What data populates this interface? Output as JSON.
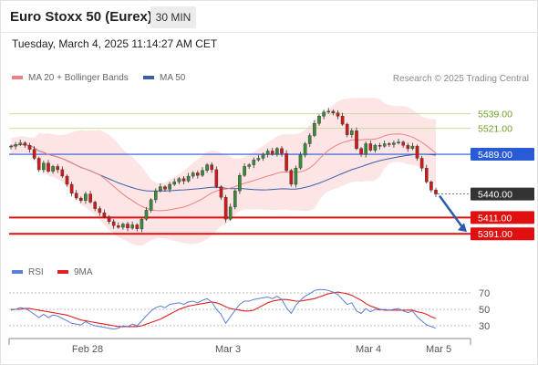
{
  "header": {
    "title": "Euro Stoxx 50 (Eurex)",
    "interval": "30 MIN",
    "timestamp": "Tuesday, March 4, 2025 11:14:27 AM CET"
  },
  "legend": {
    "ma20_bollinger": "MA 20 + Bollinger Bands",
    "ma50": "MA 50",
    "credit": "Research © 2025 Trading Central",
    "rsi": "RSI",
    "rsi_ma": "9MA"
  },
  "colors": {
    "ma20": "#f08080",
    "bollinger_fill": "#fde0e0",
    "ma50": "#3a5fa8",
    "resistance": "#c8dca0",
    "pivot": "#2a5bd7",
    "support": "#e01010",
    "last_price": "#333333",
    "candle_up": "#3b8a3b",
    "candle_down": "#d01919",
    "rsi": "#5b7fd6",
    "rsi_ma": "#e02020",
    "arrow": "#2a5bb0"
  },
  "chart_data": {
    "type": "candlestick",
    "ylim": [
      5362,
      5570
    ],
    "x_labels": [
      "Feb 28",
      "Mar 3",
      "Mar 4",
      "Mar 5"
    ],
    "levels": [
      {
        "value": 5539.0,
        "label": "5539.00",
        "kind": "resistance"
      },
      {
        "value": 5521.0,
        "label": "5521.00",
        "kind": "resistance"
      },
      {
        "value": 5489.0,
        "label": "5489.00",
        "kind": "pivot"
      },
      {
        "value": 5440.0,
        "label": "5440.00",
        "kind": "last"
      },
      {
        "value": 5411.0,
        "label": "5411.00",
        "kind": "support"
      },
      {
        "value": 5391.0,
        "label": "5391.00",
        "kind": "support"
      }
    ],
    "close": [
      5499,
      5501,
      5503,
      5500,
      5495,
      5484,
      5470,
      5478,
      5468,
      5474,
      5470,
      5462,
      5452,
      5441,
      5435,
      5432,
      5440,
      5430,
      5422,
      5417,
      5412,
      5406,
      5401,
      5399,
      5403,
      5398,
      5402,
      5397,
      5409,
      5420,
      5433,
      5444,
      5449,
      5446,
      5452,
      5455,
      5459,
      5456,
      5462,
      5466,
      5463,
      5469,
      5476,
      5470,
      5449,
      5436,
      5409,
      5424,
      5444,
      5463,
      5474,
      5476,
      5482,
      5484,
      5489,
      5493,
      5489,
      5496,
      5490,
      5469,
      5452,
      5472,
      5488,
      5502,
      5512,
      5527,
      5536,
      5541,
      5542,
      5540,
      5536,
      5526,
      5513,
      5518,
      5496,
      5489,
      5502,
      5494,
      5500,
      5499,
      5502,
      5501,
      5503,
      5504,
      5500,
      5496,
      5499,
      5484,
      5472,
      5455,
      5445,
      5440
    ],
    "rsi": {
      "ylim": [
        20,
        80
      ],
      "ticks": [
        70,
        50,
        30
      ],
      "ticklabels": [
        "70",
        "50",
        "30"
      ],
      "rsi": [
        49,
        50,
        52,
        51,
        48,
        44,
        40,
        44,
        40,
        43,
        42,
        39,
        36,
        33,
        32,
        31,
        35,
        32,
        30,
        29,
        28,
        27,
        26,
        27,
        30,
        29,
        32,
        30,
        36,
        42,
        48,
        52,
        54,
        52,
        56,
        57,
        58,
        56,
        59,
        60,
        58,
        61,
        63,
        59,
        50,
        44,
        33,
        41,
        49,
        56,
        60,
        60,
        62,
        63,
        64,
        65,
        63,
        66,
        62,
        52,
        45,
        55,
        61,
        66,
        69,
        73,
        74,
        74,
        73,
        71,
        68,
        62,
        56,
        58,
        48,
        45,
        51,
        47,
        50,
        49,
        50,
        49,
        50,
        51,
        48,
        46,
        48,
        41,
        36,
        31,
        29,
        27
      ],
      "ma": [
        50,
        50,
        50,
        51,
        51,
        50,
        49,
        48,
        47,
        46,
        45,
        44,
        43,
        41,
        39,
        37,
        36,
        35,
        34,
        33,
        32,
        31,
        30,
        29,
        29,
        29,
        29,
        29,
        30,
        32,
        34,
        36,
        38,
        41,
        44,
        47,
        50,
        52,
        54,
        55,
        56,
        57,
        58,
        59,
        58,
        56,
        53,
        51,
        50,
        49,
        48,
        48,
        49,
        52,
        55,
        58,
        60,
        61,
        62,
        62,
        61,
        60,
        60,
        61,
        62,
        63,
        65,
        67,
        69,
        70,
        71,
        70,
        69,
        67,
        64,
        61,
        57,
        54,
        52,
        50,
        49,
        49,
        49,
        49,
        49,
        49,
        49,
        47,
        46,
        44,
        41,
        39
      ]
    }
  }
}
